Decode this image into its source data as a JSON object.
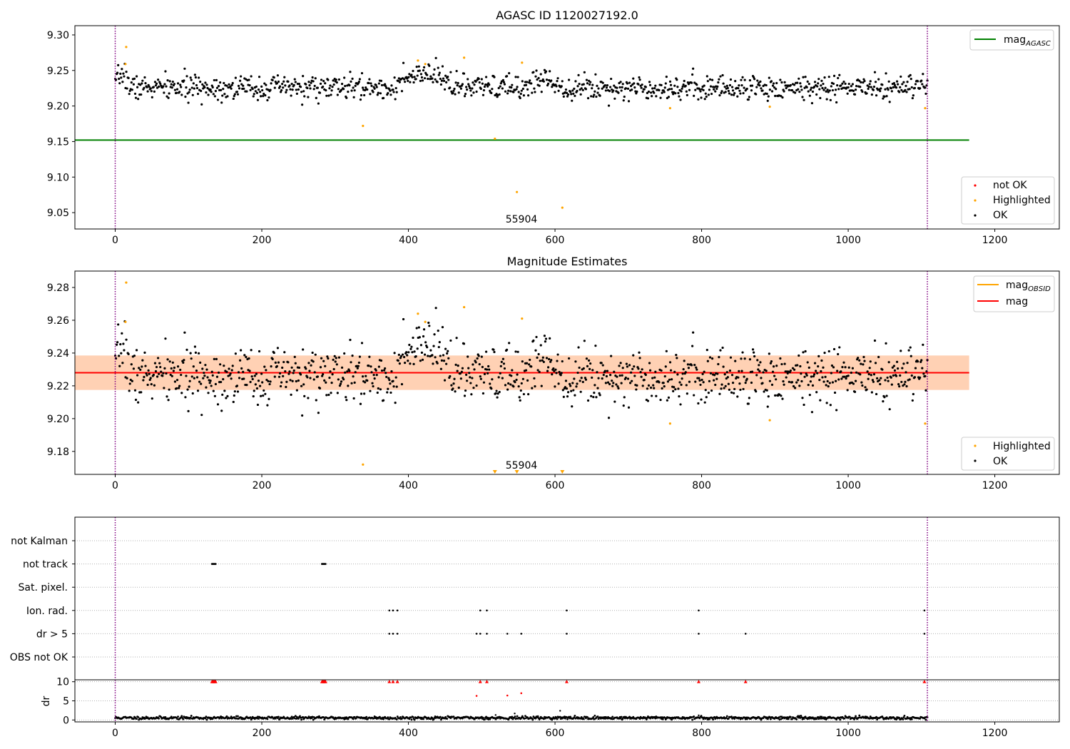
{
  "chart_data": [
    {
      "type": "scatter",
      "title": "AGASC ID 1120027192.0",
      "xlabel": "",
      "ylabel": "",
      "xlim": [
        -55,
        1288
      ],
      "ylim": [
        9.027,
        9.313
      ],
      "x_ticks": [
        0,
        200,
        400,
        600,
        800,
        1000,
        1200
      ],
      "y_ticks": [
        9.05,
        9.1,
        9.15,
        9.2,
        9.25,
        9.3
      ],
      "y_tick_labels": [
        "9.05",
        "9.10",
        "9.15",
        "9.20",
        "9.25",
        "9.30"
      ],
      "grid": false,
      "vlines": [
        0,
        1108
      ],
      "annotation": {
        "text": "55904",
        "x": 552,
        "y": 9.036
      },
      "hlines": [
        {
          "name": "mag",
          "name_sub": "AGASC",
          "y": 9.152,
          "color": "#008000"
        }
      ],
      "legend_lines": {
        "position": "top-right",
        "entries": [
          {
            "name": "mag",
            "sub": "AGASC",
            "color": "#008000"
          }
        ]
      },
      "legend_points": {
        "position": "lower-right",
        "entries": [
          {
            "name": "not OK",
            "color": "#ff0000"
          },
          {
            "name": "Highlighted",
            "color": "#ffa500"
          },
          {
            "name": "OK",
            "color": "#000000"
          }
        ]
      },
      "highlighted": {
        "x": [
          15,
          14,
          338,
          413,
          423,
          476,
          518,
          548,
          555,
          610,
          757,
          893,
          1105
        ],
        "y": [
          9.283,
          9.259,
          9.172,
          9.264,
          9.259,
          9.268,
          9.154,
          9.079,
          9.261,
          9.057,
          9.197,
          9.199,
          9.197
        ]
      },
      "ok_model": {
        "x_start": 0,
        "x_end": 1108,
        "n": 1100,
        "baseline": 9.226,
        "scatter": 0.0085,
        "bumps": [
          {
            "x0": 0,
            "x1": 20,
            "dy": 0.02
          },
          {
            "x0": 378,
            "x1": 470,
            "dy": 0.017
          },
          {
            "x0": 560,
            "x1": 610,
            "dy": 0.012
          }
        ]
      }
    },
    {
      "type": "scatter",
      "title": "Magnitude Estimates",
      "xlabel": "",
      "ylabel": "",
      "xlim": [
        -55,
        1288
      ],
      "ylim": [
        9.166,
        9.29
      ],
      "x_ticks": [
        0,
        200,
        400,
        600,
        800,
        1000,
        1200
      ],
      "y_ticks": [
        9.18,
        9.2,
        9.22,
        9.24,
        9.26,
        9.28
      ],
      "y_tick_labels": [
        "9.18",
        "9.20",
        "9.22",
        "9.24",
        "9.26",
        "9.28"
      ],
      "grid": false,
      "vlines": [
        0,
        1108
      ],
      "annotation": {
        "text": "55904",
        "x": 552,
        "y": 9.17
      },
      "bands": [
        {
          "y0": 9.2175,
          "y1": 9.2385,
          "color": "#ffdde2"
        },
        {
          "y0": 9.2175,
          "y1": 9.2385,
          "color": "#ffa500",
          "opacity": 0.2
        }
      ],
      "hlines": [
        {
          "name": "mag",
          "name_sub": "OBSID",
          "y": 9.228,
          "color": "#ffa500"
        },
        {
          "name": "mag",
          "y": 9.228,
          "color": "#ff0000"
        }
      ],
      "legend_lines": {
        "position": "top-right",
        "entries": [
          {
            "name": "mag",
            "sub": "OBSID",
            "color": "#ffa500"
          },
          {
            "name": "mag",
            "sub": "",
            "color": "#ff0000"
          }
        ]
      },
      "legend_points": {
        "position": "lower-right",
        "entries": [
          {
            "name": "Highlighted",
            "color": "#ffa500"
          },
          {
            "name": "OK",
            "color": "#000000"
          }
        ]
      },
      "highlighted": {
        "x": [
          15,
          14,
          338,
          413,
          423,
          476,
          555,
          757,
          893,
          1105
        ],
        "y": [
          9.283,
          9.259,
          9.172,
          9.264,
          9.259,
          9.268,
          9.261,
          9.197,
          9.199,
          9.197
        ]
      },
      "off_scale_markers": {
        "x": [
          518,
          548,
          610
        ],
        "marker": "triangle-down",
        "color": "#ffa500"
      },
      "ok_model": {
        "x_start": 0,
        "x_end": 1108,
        "n": 1100,
        "baseline": 9.226,
        "scatter": 0.0085,
        "bumps": [
          {
            "x0": 0,
            "x1": 20,
            "dy": 0.02
          },
          {
            "x0": 378,
            "x1": 470,
            "dy": 0.017
          },
          {
            "x0": 560,
            "x1": 610,
            "dy": 0.012
          }
        ]
      }
    },
    {
      "type": "scatter",
      "title": "",
      "xlabel": "",
      "ylabel": "",
      "xlim": [
        -55,
        1288
      ],
      "vlines": [
        0,
        1108
      ],
      "categories": [
        "not Kalman",
        "not track",
        "Sat. pixel.",
        "Ion. rad.",
        "dr > 5",
        "OBS not OK"
      ],
      "flags": {
        "not Kalman": [],
        "not track": [
          132,
          133,
          134,
          135,
          136,
          137,
          282,
          283,
          284,
          285,
          286,
          287
        ],
        "Sat. pixel.": [],
        "Ion. rad.": [
          374,
          379,
          385,
          498,
          507,
          616,
          796,
          1104
        ],
        "dr > 5": [
          374,
          379,
          385,
          493,
          498,
          507,
          535,
          554,
          616,
          796,
          860,
          1104
        ],
        "OBS not OK": []
      },
      "x_ticks": [
        0,
        200,
        400,
        600,
        800,
        1000,
        1200
      ]
    },
    {
      "type": "scatter",
      "title": "",
      "xlabel": "",
      "ylabel": "dr",
      "xlim": [
        -55,
        1288
      ],
      "ylim": [
        -0.5,
        10.5
      ],
      "x_ticks": [
        0,
        200,
        400,
        600,
        800,
        1000,
        1200
      ],
      "y_ticks": [
        0,
        5,
        10
      ],
      "y_tick_labels": [
        "0",
        "5",
        "10"
      ],
      "vlines": [
        0,
        1108
      ],
      "clipped_markers": {
        "x": [
          132,
          133,
          134,
          135,
          136,
          137,
          282,
          283,
          284,
          285,
          286,
          287,
          374,
          379,
          385,
          498,
          507,
          616,
          796,
          860,
          1104
        ],
        "y": 10,
        "color": "#ff0000"
      },
      "red_points": {
        "x": [
          493,
          535,
          554
        ],
        "y": [
          6.3,
          6.4,
          7.0
        ]
      },
      "ok_points_extra": {
        "x": [
          519,
          545,
          607,
          796
        ],
        "y": [
          1.3,
          1.7,
          2.4,
          1.2
        ]
      },
      "ok_model": {
        "x_start": 0,
        "x_end": 1108,
        "n": 1100,
        "baseline": 0.55,
        "scatter": 0.2
      }
    }
  ]
}
